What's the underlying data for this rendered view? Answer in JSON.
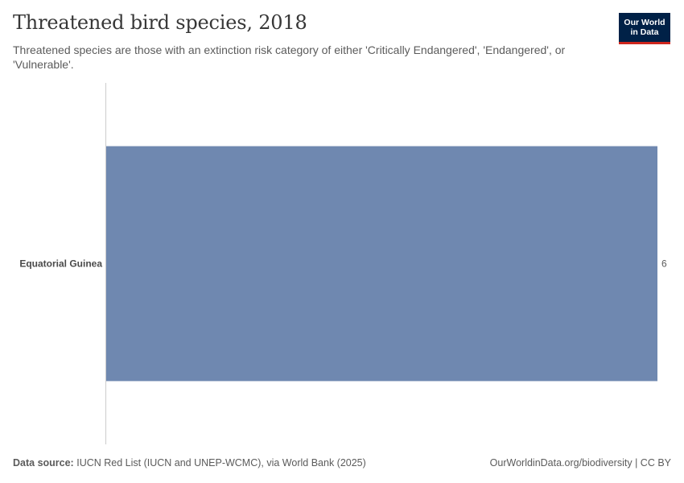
{
  "title": "Threatened bird species, 2018",
  "subtitle": "Threatened species are those with an extinction risk category of either 'Critically Endangered', 'Endangered', or 'Vulnerable'.",
  "logo": {
    "line1": "Our World",
    "line2": "in Data",
    "bg_color": "#002147",
    "accent_color": "#ce261e"
  },
  "chart_data": {
    "type": "bar",
    "orientation": "horizontal",
    "categories": [
      "Equatorial Guinea"
    ],
    "values": [
      6
    ],
    "value_labels": [
      "6"
    ],
    "xlim": [
      0,
      6
    ],
    "grid": false,
    "bar_color": "#6f88b0"
  },
  "footer": {
    "source_label": "Data source:",
    "source_text": "IUCN Red List (IUCN and UNEP-WCMC), via World Bank (2025)",
    "link_text": "OurWorldinData.org/biodiversity | CC BY"
  }
}
